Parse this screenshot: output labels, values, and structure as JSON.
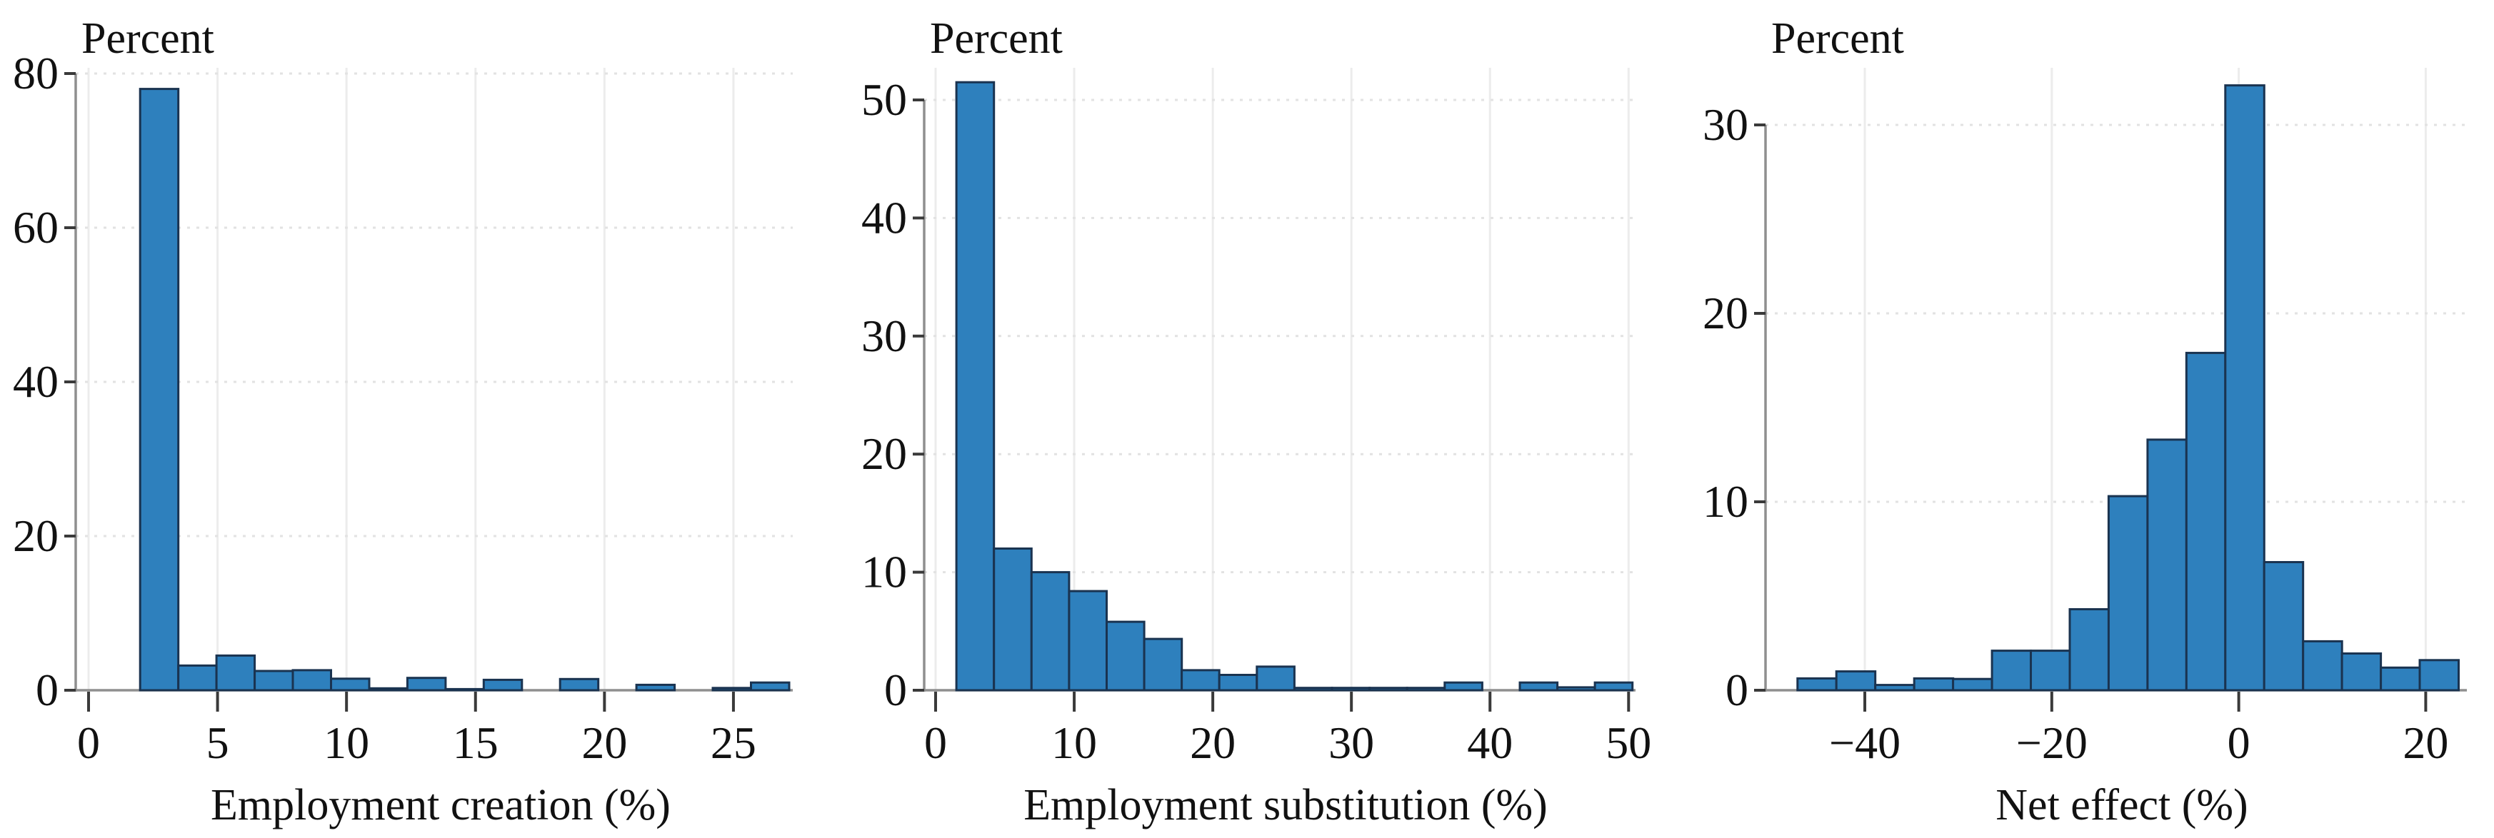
{
  "figure": {
    "kind": "three-panel histogram figure",
    "background": "#ffffff"
  },
  "styles": {
    "bar_fill": "#2e80bd",
    "bar_stroke": "#1a3350",
    "axis_color": "#8f8f8f",
    "tick_color": "#3a3a3a",
    "text_color": "#111111",
    "grid_v_color": "#ececec",
    "grid_h_color": "#e2e2e2"
  },
  "chart_data": [
    {
      "type": "bar",
      "title": "Percent",
      "ylabel": "Percent",
      "xlabel": "Employment creation (%)",
      "xlim": [
        0,
        27.3
      ],
      "ylim": [
        0,
        80
      ],
      "grid": true,
      "legend_position": "none",
      "xticks": [
        0,
        5,
        10,
        15,
        20,
        25
      ],
      "xtick_labels": [
        "0",
        "5",
        "10",
        "15",
        "20",
        "25"
      ],
      "yticks": [
        0,
        20,
        40,
        60,
        80
      ],
      "ytick_labels": [
        "0",
        "20",
        "40",
        "60",
        "80"
      ],
      "bins": {
        "start": 2.0,
        "width": 1.48
      },
      "values": [
        78,
        3.2,
        4.5,
        2.5,
        2.6,
        1.5,
        0.25,
        1.6,
        0.15,
        1.35,
        0,
        1.45,
        0,
        0.7,
        0,
        0.3,
        1.0
      ]
    },
    {
      "type": "bar",
      "title": "Percent",
      "ylabel": "Percent",
      "xlabel": "Employment substitution (%)",
      "xlim": [
        0,
        50.5
      ],
      "ylim": [
        0,
        50
      ],
      "grid": true,
      "legend_position": "none",
      "xticks": [
        0,
        10,
        20,
        30,
        40,
        50
      ],
      "xtick_labels": [
        "0",
        "10",
        "20",
        "30",
        "40",
        "50"
      ],
      "yticks": [
        0,
        10,
        20,
        30,
        40,
        50
      ],
      "ytick_labels": [
        "0",
        "10",
        "20",
        "30",
        "40",
        "50"
      ],
      "bins": {
        "start": 1.5,
        "width": 2.71
      },
      "values": [
        51.5,
        12,
        10,
        8.4,
        5.8,
        4.35,
        1.7,
        1.3,
        2.0,
        0.2,
        0.2,
        0.2,
        0.2,
        0.65,
        0,
        0.65,
        0.25,
        0.65
      ]
    },
    {
      "type": "bar",
      "title": "Percent",
      "ylabel": "Percent",
      "xlabel": "Net effect (%)",
      "xlim": [
        -49.4,
        24.4
      ],
      "ylim": [
        0,
        30
      ],
      "grid": true,
      "legend_position": "none",
      "xticks": [
        -40,
        -20,
        0,
        20
      ],
      "xtick_labels": [
        "−40",
        "−20",
        "0",
        "20"
      ],
      "yticks": [
        0,
        10,
        20,
        30
      ],
      "ytick_labels": [
        "0",
        "10",
        "20",
        "30"
      ],
      "bins": {
        "start": -47.2,
        "width": 4.16
      },
      "values": [
        0.63,
        1.0,
        0.28,
        0.63,
        0.6,
        2.1,
        2.1,
        4.3,
        10.3,
        13.3,
        17.9,
        32.1,
        6.8,
        2.6,
        1.95,
        1.2,
        1.6
      ]
    }
  ]
}
